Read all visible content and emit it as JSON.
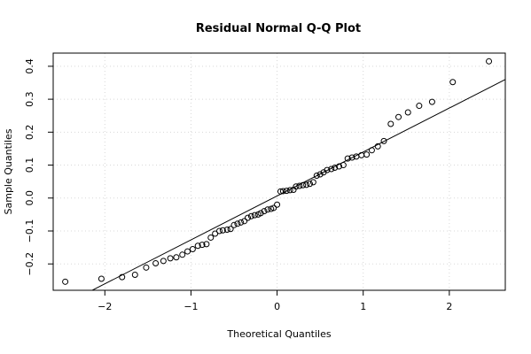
{
  "chart_data": {
    "type": "scatter",
    "title": "Residual Normal Q-Q Plot",
    "xlabel": "Theoretical Quantiles",
    "ylabel": "Sample Quantiles",
    "xlim": [
      -2.6,
      2.65
    ],
    "ylim": [
      -0.28,
      0.44
    ],
    "xticks": [
      -2,
      -1,
      0,
      1,
      2
    ],
    "xtick_labels": [
      "−2",
      "−1",
      "0",
      "1",
      "2"
    ],
    "yticks": [
      -0.2,
      -0.1,
      0.0,
      0.1,
      0.2,
      0.3,
      0.4
    ],
    "ytick_labels": [
      "−0.2",
      "−0.1",
      "0.0",
      "0.1",
      "0.2",
      "0.3",
      "0.4"
    ],
    "grid": true,
    "reference_line": {
      "slope": 0.1334,
      "intercept": 0.0064
    },
    "points": [
      {
        "x": -2.46,
        "y": -0.254
      },
      {
        "x": -2.04,
        "y": -0.245
      },
      {
        "x": -1.8,
        "y": -0.24
      },
      {
        "x": -1.65,
        "y": -0.233
      },
      {
        "x": -1.52,
        "y": -0.211
      },
      {
        "x": -1.41,
        "y": -0.198
      },
      {
        "x": -1.32,
        "y": -0.191
      },
      {
        "x": -1.24,
        "y": -0.183
      },
      {
        "x": -1.17,
        "y": -0.18
      },
      {
        "x": -1.1,
        "y": -0.172
      },
      {
        "x": -1.04,
        "y": -0.162
      },
      {
        "x": -0.98,
        "y": -0.155
      },
      {
        "x": -0.92,
        "y": -0.145
      },
      {
        "x": -0.87,
        "y": -0.142
      },
      {
        "x": -0.82,
        "y": -0.14
      },
      {
        "x": -0.77,
        "y": -0.12
      },
      {
        "x": -0.72,
        "y": -0.108
      },
      {
        "x": -0.67,
        "y": -0.1
      },
      {
        "x": -0.63,
        "y": -0.098
      },
      {
        "x": -0.58,
        "y": -0.096
      },
      {
        "x": -0.54,
        "y": -0.094
      },
      {
        "x": -0.5,
        "y": -0.082
      },
      {
        "x": -0.46,
        "y": -0.078
      },
      {
        "x": -0.42,
        "y": -0.074
      },
      {
        "x": -0.38,
        "y": -0.07
      },
      {
        "x": -0.34,
        "y": -0.06
      },
      {
        "x": -0.3,
        "y": -0.055
      },
      {
        "x": -0.26,
        "y": -0.052
      },
      {
        "x": -0.22,
        "y": -0.05
      },
      {
        "x": -0.19,
        "y": -0.046
      },
      {
        "x": -0.15,
        "y": -0.04
      },
      {
        "x": -0.11,
        "y": -0.035
      },
      {
        "x": -0.07,
        "y": -0.033
      },
      {
        "x": -0.04,
        "y": -0.03
      },
      {
        "x": 0.0,
        "y": -0.02
      },
      {
        "x": 0.04,
        "y": 0.02
      },
      {
        "x": 0.07,
        "y": 0.021
      },
      {
        "x": 0.11,
        "y": 0.022
      },
      {
        "x": 0.15,
        "y": 0.024
      },
      {
        "x": 0.19,
        "y": 0.025
      },
      {
        "x": 0.22,
        "y": 0.035
      },
      {
        "x": 0.26,
        "y": 0.037
      },
      {
        "x": 0.3,
        "y": 0.039
      },
      {
        "x": 0.34,
        "y": 0.04
      },
      {
        "x": 0.38,
        "y": 0.043
      },
      {
        "x": 0.42,
        "y": 0.048
      },
      {
        "x": 0.46,
        "y": 0.068
      },
      {
        "x": 0.5,
        "y": 0.072
      },
      {
        "x": 0.54,
        "y": 0.078
      },
      {
        "x": 0.58,
        "y": 0.085
      },
      {
        "x": 0.63,
        "y": 0.088
      },
      {
        "x": 0.67,
        "y": 0.092
      },
      {
        "x": 0.72,
        "y": 0.096
      },
      {
        "x": 0.77,
        "y": 0.1
      },
      {
        "x": 0.82,
        "y": 0.12
      },
      {
        "x": 0.87,
        "y": 0.123
      },
      {
        "x": 0.92,
        "y": 0.126
      },
      {
        "x": 0.98,
        "y": 0.13
      },
      {
        "x": 1.04,
        "y": 0.132
      },
      {
        "x": 1.1,
        "y": 0.145
      },
      {
        "x": 1.17,
        "y": 0.157
      },
      {
        "x": 1.24,
        "y": 0.173
      },
      {
        "x": 1.32,
        "y": 0.225
      },
      {
        "x": 1.41,
        "y": 0.246
      },
      {
        "x": 1.52,
        "y": 0.26
      },
      {
        "x": 1.65,
        "y": 0.28
      },
      {
        "x": 1.8,
        "y": 0.292
      },
      {
        "x": 2.04,
        "y": 0.352
      },
      {
        "x": 2.46,
        "y": 0.415
      }
    ]
  }
}
